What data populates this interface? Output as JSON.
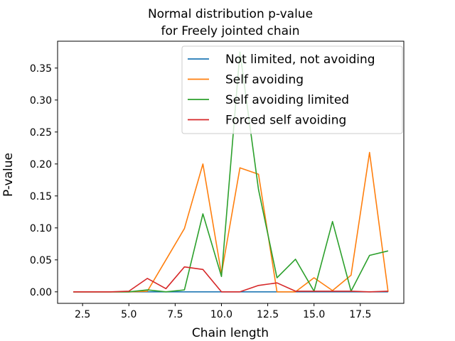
{
  "chart_data": {
    "type": "line",
    "title_line1": "Normal distribution p-value",
    "title_line2": "for Freely jointed chain",
    "xlabel": "Chain length",
    "ylabel": "P-value",
    "xlim": [
      1.15,
      19.85
    ],
    "ylim": [
      -0.018,
      0.392
    ],
    "xticks": [
      2.5,
      5.0,
      7.5,
      10.0,
      12.5,
      15.0,
      17.5
    ],
    "xtick_labels": [
      "2.5",
      "5.0",
      "7.5",
      "10.0",
      "12.5",
      "15.0",
      "17.5"
    ],
    "yticks": [
      0.0,
      0.05,
      0.1,
      0.15,
      0.2,
      0.25,
      0.3,
      0.35
    ],
    "ytick_labels": [
      "0.00",
      "0.05",
      "0.10",
      "0.15",
      "0.20",
      "0.25",
      "0.30",
      "0.35"
    ],
    "legend_position": "top-right",
    "x": [
      2,
      3,
      4,
      5,
      6,
      7,
      8,
      9,
      10,
      11,
      12,
      13,
      14,
      15,
      16,
      17,
      18,
      19
    ],
    "series": [
      {
        "name": "Not limited, not avoiding",
        "color": "#1f77b4",
        "values": [
          0,
          0,
          0,
          0,
          0,
          0,
          0,
          0,
          0,
          0,
          0,
          0,
          0,
          0,
          0,
          0,
          0,
          0
        ]
      },
      {
        "name": "Self avoiding",
        "color": "#ff7f0e",
        "values": [
          0,
          0,
          0,
          0,
          0.001,
          0.05,
          0.099,
          0.2,
          0.028,
          0.194,
          0.184,
          0,
          0,
          0.022,
          0.002,
          0.026,
          0.218,
          0
        ]
      },
      {
        "name": "Self avoiding limited",
        "color": "#2ca02c",
        "values": [
          0,
          0,
          0,
          0,
          0.003,
          0,
          0.003,
          0.122,
          0.024,
          0.375,
          0.16,
          0.022,
          0.051,
          0.001,
          0.11,
          0.001,
          0.057,
          0.064
        ]
      },
      {
        "name": "Forced self avoiding",
        "color": "#d62728",
        "values": [
          0,
          0,
          0,
          0.001,
          0.021,
          0.005,
          0.039,
          0.035,
          0,
          0,
          0.01,
          0.014,
          0.001,
          0.001,
          0.001,
          0.001,
          0,
          0.001
        ]
      }
    ]
  }
}
